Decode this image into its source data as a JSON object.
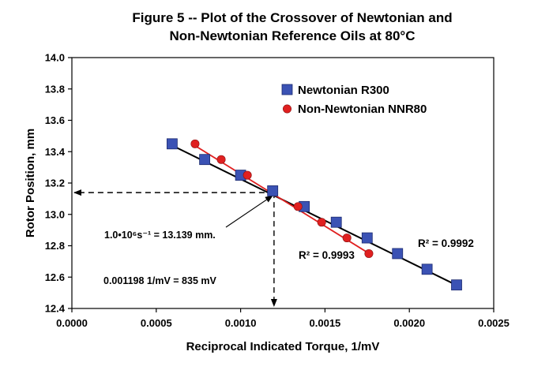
{
  "chart_data": {
    "type": "scatter",
    "title_lines": [
      "Figure 5 --  Plot of the Crossover of Newtonian and",
      "Non-Newtonian Reference Oils at 80°C"
    ],
    "xlabel": "Reciprocal Indicated Torque, 1/mV",
    "ylabel": "Rotor Position, mm",
    "xlim": [
      0,
      0.0025
    ],
    "ylim": [
      12.4,
      14.0
    ],
    "x_ticks": [
      "0.0000",
      "0.0005",
      "0.0010",
      "0.0015",
      "0.0020",
      "0.0025"
    ],
    "y_ticks": [
      "12.4",
      "12.6",
      "12.8",
      "13.0",
      "13.2",
      "13.4",
      "13.6",
      "13.8",
      "14.0"
    ],
    "grid": false,
    "legend_position": "top-right",
    "series": [
      {
        "name": "Newtonian R300",
        "marker": "square",
        "color": "#3b52b4",
        "line_color": "#000000",
        "x": [
          0.000594,
          0.000787,
          0.001,
          0.00119,
          0.001377,
          0.001567,
          0.00175,
          0.00193,
          0.002105,
          0.00228
        ],
        "y": [
          13.45,
          13.35,
          13.25,
          13.15,
          13.05,
          12.95,
          12.85,
          12.75,
          12.65,
          12.55
        ],
        "fit_x": [
          0.00058,
          0.00229
        ],
        "fit_y": [
          13.447,
          12.543
        ],
        "r2_label": "R² = 0.9992"
      },
      {
        "name": "Non-Newtonian NNR80",
        "marker": "circle",
        "color": "#e02020",
        "line_color": "#e02020",
        "x": [
          0.00073,
          0.000885,
          0.00104,
          0.00134,
          0.00148,
          0.00163,
          0.00176
        ],
        "y": [
          13.45,
          13.35,
          13.25,
          13.05,
          12.95,
          12.85,
          12.75
        ],
        "fit_x": [
          0.00072,
          0.00177
        ],
        "fit_y": [
          13.445,
          12.745
        ],
        "r2_label": "R² = 0.9993"
      }
    ],
    "crossover": {
      "x": 0.001198,
      "y": 13.139
    },
    "annotations": [
      {
        "text": "1.0•10⁶s⁻¹ = 13.139 mm."
      },
      {
        "text": "0.001198 1/mV = 835 mV"
      }
    ]
  }
}
